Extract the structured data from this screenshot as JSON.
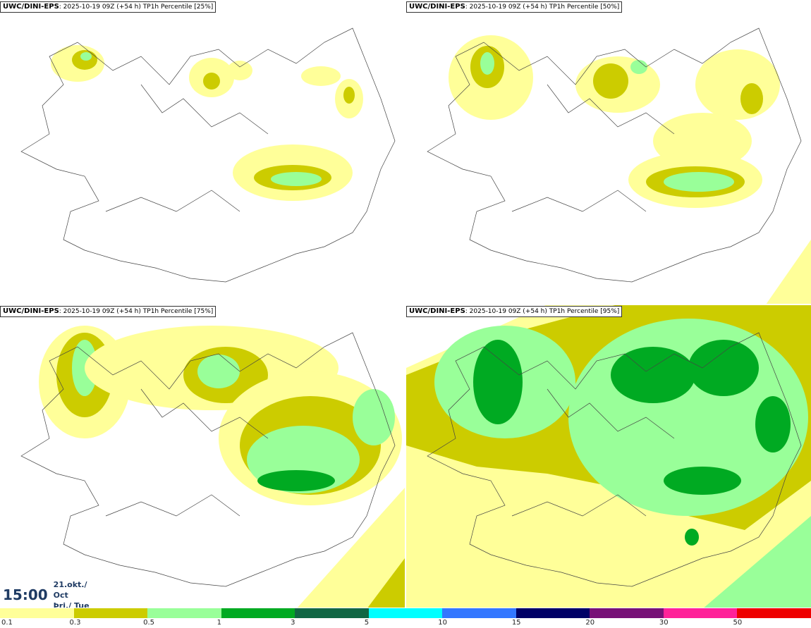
{
  "panels": [
    {
      "model": "UWC/DINI-EPS",
      "run": ": 2025-10-19 09Z (+54 h)",
      "product": "TP1h Percentile [25%]"
    },
    {
      "model": "UWC/DINI-EPS",
      "run": ": 2025-10-19 09Z (+54 h)",
      "product": "TP1h Percentile [50%]"
    },
    {
      "model": "UWC/DINI-EPS",
      "run": ": 2025-10-19 09Z (+54 h)",
      "product": "TP1h Percentile [75%]"
    },
    {
      "model": "UWC/DINI-EPS",
      "run": ": 2025-10-19 09Z (+54 h)",
      "product": "TP1h Percentile [95%]"
    }
  ],
  "valid_time": {
    "time": "15:00",
    "date_line1": "21.okt./ Oct",
    "date_line2": "Þri./ Tue"
  },
  "legend": {
    "labels": [
      "0.1",
      "0.3",
      "0.5",
      "1",
      "3",
      "5",
      "10",
      "15",
      "20",
      "30",
      "50"
    ],
    "colors": [
      "#ffff99",
      "#cccc00",
      "#99ff99",
      "#00aa22",
      "#116644",
      "#00ffff",
      "#3377ff",
      "#000066",
      "#771177",
      "#ff2299",
      "#ee0000"
    ]
  }
}
